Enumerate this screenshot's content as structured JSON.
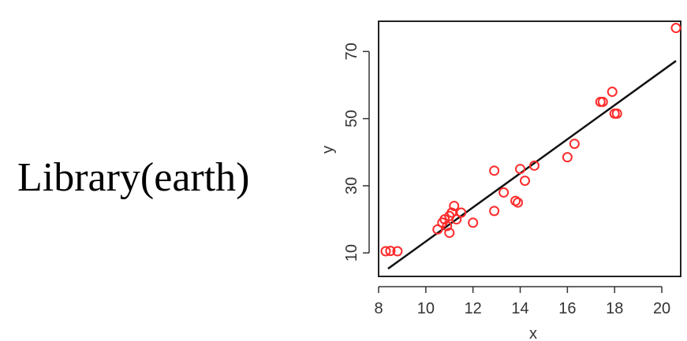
{
  "caption": "Library(earth)",
  "colors": {
    "points": "#ff2b2b",
    "fit_line": "#111111",
    "frame": "#222222"
  },
  "chart_data": {
    "type": "scatter",
    "xlabel": "x",
    "ylabel": "y",
    "xlim": [
      8,
      20.8
    ],
    "ylim": [
      3,
      79
    ],
    "xticks": [
      "8",
      "10",
      "12",
      "14",
      "16",
      "18",
      "20"
    ],
    "yticks": [
      "10",
      "30",
      "50",
      "70"
    ],
    "points": [
      {
        "x": 8.3,
        "y": 10.5
      },
      {
        "x": 8.5,
        "y": 10.6
      },
      {
        "x": 8.8,
        "y": 10.5
      },
      {
        "x": 10.5,
        "y": 17
      },
      {
        "x": 10.7,
        "y": 19
      },
      {
        "x": 10.8,
        "y": 20
      },
      {
        "x": 10.9,
        "y": 18
      },
      {
        "x": 11.0,
        "y": 16
      },
      {
        "x": 11.0,
        "y": 21
      },
      {
        "x": 11.1,
        "y": 22
      },
      {
        "x": 11.2,
        "y": 24
      },
      {
        "x": 11.3,
        "y": 20
      },
      {
        "x": 11.5,
        "y": 22
      },
      {
        "x": 12.0,
        "y": 19
      },
      {
        "x": 12.9,
        "y": 22.5
      },
      {
        "x": 12.9,
        "y": 34.5
      },
      {
        "x": 13.3,
        "y": 28
      },
      {
        "x": 13.8,
        "y": 25.5
      },
      {
        "x": 13.9,
        "y": 25
      },
      {
        "x": 14.0,
        "y": 35
      },
      {
        "x": 14.2,
        "y": 31.5
      },
      {
        "x": 14.6,
        "y": 36
      },
      {
        "x": 16.0,
        "y": 38.5
      },
      {
        "x": 16.3,
        "y": 42.5
      },
      {
        "x": 17.4,
        "y": 55
      },
      {
        "x": 17.5,
        "y": 55
      },
      {
        "x": 17.9,
        "y": 58
      },
      {
        "x": 18.0,
        "y": 51.5
      },
      {
        "x": 18.1,
        "y": 51.5
      },
      {
        "x": 20.6,
        "y": 77
      }
    ],
    "fit_line": {
      "x": [
        8.4,
        20.6
      ],
      "y": [
        5.3,
        67.2
      ]
    },
    "grid": false,
    "legend": "none"
  }
}
